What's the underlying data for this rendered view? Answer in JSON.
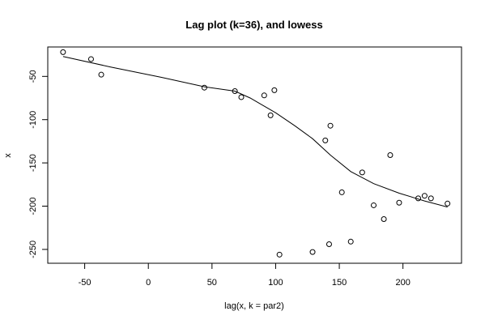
{
  "chart_data": {
    "type": "scatter",
    "title": "Lag plot (k=36), and lowess",
    "xlabel": "lag(x, k = par2)",
    "ylabel": "x",
    "xlim": [
      -79,
      246
    ],
    "ylim": [
      -266,
      -16
    ],
    "x_ticks": [
      -50,
      0,
      50,
      100,
      150,
      200
    ],
    "x_tick_labels": [
      "-50",
      "0",
      "50",
      "100",
      "150",
      "200"
    ],
    "y_ticks": [
      -250,
      -200,
      -150,
      -100,
      -50
    ],
    "y_tick_labels": [
      "-250",
      "-200",
      "-150",
      "-100",
      "-50"
    ],
    "grid": false,
    "series": [
      {
        "kind": "points",
        "marker": "open-circle",
        "points": [
          {
            "x": -67,
            "y": -22
          },
          {
            "x": -45,
            "y": -30
          },
          {
            "x": -37,
            "y": -48
          },
          {
            "x": 44,
            "y": -63
          },
          {
            "x": 68,
            "y": -67
          },
          {
            "x": 73,
            "y": -74
          },
          {
            "x": 91,
            "y": -72
          },
          {
            "x": 96,
            "y": -95
          },
          {
            "x": 99,
            "y": -66
          },
          {
            "x": 103,
            "y": -256
          },
          {
            "x": 129,
            "y": -253
          },
          {
            "x": 139,
            "y": -124
          },
          {
            "x": 142,
            "y": -244
          },
          {
            "x": 143,
            "y": -107
          },
          {
            "x": 152,
            "y": -184
          },
          {
            "x": 159,
            "y": -241
          },
          {
            "x": 168,
            "y": -161
          },
          {
            "x": 177,
            "y": -199
          },
          {
            "x": 185,
            "y": -215
          },
          {
            "x": 190,
            "y": -141
          },
          {
            "x": 197,
            "y": -196
          },
          {
            "x": 212,
            "y": -191
          },
          {
            "x": 217,
            "y": -188
          },
          {
            "x": 222,
            "y": -191
          },
          {
            "x": 235,
            "y": -197
          }
        ]
      },
      {
        "kind": "line",
        "points": [
          {
            "x": -67,
            "y": -27
          },
          {
            "x": -30,
            "y": -39
          },
          {
            "x": 10,
            "y": -51
          },
          {
            "x": 44,
            "y": -62
          },
          {
            "x": 68,
            "y": -67
          },
          {
            "x": 80,
            "y": -75
          },
          {
            "x": 100,
            "y": -92
          },
          {
            "x": 115,
            "y": -107
          },
          {
            "x": 129,
            "y": -122
          },
          {
            "x": 143,
            "y": -141
          },
          {
            "x": 159,
            "y": -160
          },
          {
            "x": 177,
            "y": -174
          },
          {
            "x": 197,
            "y": -185
          },
          {
            "x": 217,
            "y": -194
          },
          {
            "x": 235,
            "y": -201
          }
        ]
      }
    ]
  }
}
